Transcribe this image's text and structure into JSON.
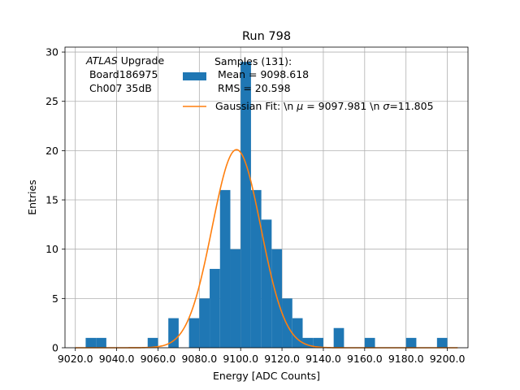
{
  "chart_data": {
    "type": "bar",
    "title": "Run 798",
    "xlabel": "Energy [ADC Counts]",
    "ylabel": "Entries",
    "xlim": [
      9015,
      9210
    ],
    "ylim": [
      0,
      30.5
    ],
    "grid": true,
    "legend_position": "top-right",
    "x_ticks": [
      9020,
      9040,
      9060,
      9080,
      9100,
      9120,
      9140,
      9160,
      9180,
      9200
    ],
    "x_tick_labels": [
      "9020.0",
      "9040.0",
      "9060.0",
      "9080.0",
      "9100.0",
      "9120.0",
      "9140.0",
      "9160.0",
      "9180.0",
      "9200.0"
    ],
    "y_ticks": [
      0,
      5,
      10,
      15,
      20,
      25,
      30
    ],
    "y_tick_labels": [
      "0",
      "5",
      "10",
      "15",
      "20",
      "25",
      "30"
    ],
    "bin_width": 5,
    "bins": [
      {
        "x0": 9025,
        "count": 1
      },
      {
        "x0": 9030,
        "count": 1
      },
      {
        "x0": 9055,
        "count": 1
      },
      {
        "x0": 9065,
        "count": 3
      },
      {
        "x0": 9075,
        "count": 3
      },
      {
        "x0": 9080,
        "count": 5
      },
      {
        "x0": 9085,
        "count": 8
      },
      {
        "x0": 9090,
        "count": 16
      },
      {
        "x0": 9095,
        "count": 10
      },
      {
        "x0": 9100,
        "count": 29
      },
      {
        "x0": 9105,
        "count": 16
      },
      {
        "x0": 9110,
        "count": 13
      },
      {
        "x0": 9115,
        "count": 10
      },
      {
        "x0": 9120,
        "count": 5
      },
      {
        "x0": 9125,
        "count": 3
      },
      {
        "x0": 9130,
        "count": 1
      },
      {
        "x0": 9135,
        "count": 1
      },
      {
        "x0": 9145,
        "count": 2
      },
      {
        "x0": 9160,
        "count": 1
      },
      {
        "x0": 9180,
        "count": 1
      },
      {
        "x0": 9195,
        "count": 1
      }
    ],
    "series": [
      {
        "name": "Samples (131):\n Mean = 9098.618\n RMS = 20.598",
        "kind": "histogram",
        "color": "#1f77b4"
      },
      {
        "name": "Gaussian Fit: \\n μ = 9097.981 \\n σ=11.805",
        "kind": "line",
        "color": "#ff7f0e",
        "amplitude": 20.1,
        "mu": 9097.981,
        "sigma": 11.805
      }
    ],
    "legend": {
      "hist_lines": [
        "Samples (131):",
        " Mean = 9098.618",
        " RMS = 20.598"
      ],
      "fit_label_prefix": "Gaussian Fit: \\n ",
      "fit_mu_symbol": "μ",
      "fit_mu_value": " = 9097.981 \\n ",
      "fit_sigma_symbol": "σ",
      "fit_sigma_value": "=11.805"
    },
    "annotation": {
      "experiment": "ATLAS",
      "experiment_suffix": " Upgrade",
      "board": " Board186975",
      "channel": " Ch007 35dB"
    }
  }
}
